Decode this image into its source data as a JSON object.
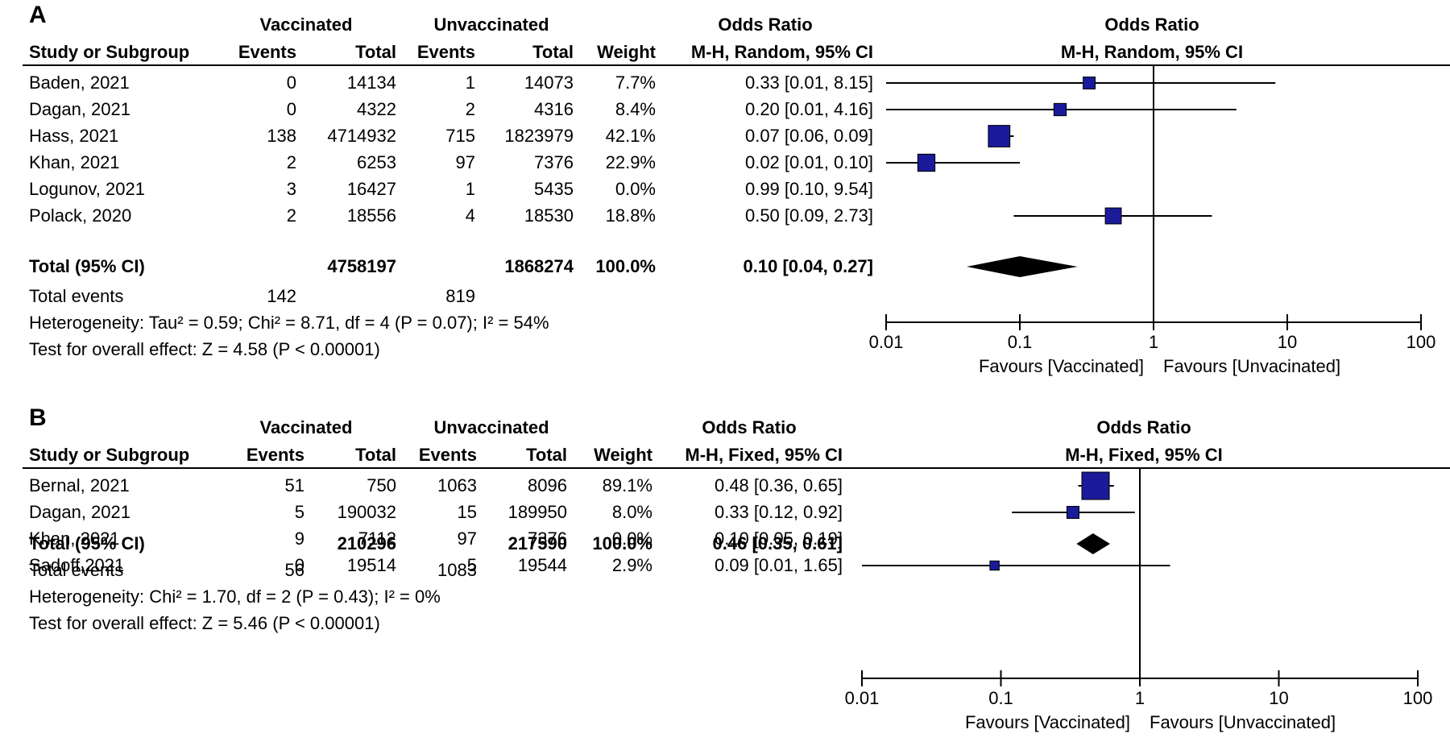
{
  "chart_data": [
    {
      "type": "forest",
      "panel_label": "A",
      "group_headers": {
        "vaccinated": "Vaccinated",
        "unvaccinated": "Unvaccinated",
        "or_table": "Odds Ratio",
        "or_plot": "Odds Ratio"
      },
      "column_headers": {
        "study": "Study or Subgroup",
        "events1": "Events",
        "total1": "Total",
        "events2": "Events",
        "total2": "Total",
        "weight": "Weight",
        "method_table": "M-H, Random, 95% CI",
        "method_plot": "M-H, Random, 95% CI"
      },
      "studies": [
        {
          "name": "Baden, 2021",
          "events1": "0",
          "total1": "14134",
          "events2": "1",
          "total2": "14073",
          "weight": "7.7%",
          "or_text": "0.33 [0.01, 8.15]",
          "or": 0.33,
          "lo": 0.01,
          "hi": 8.15,
          "w": 7.7
        },
        {
          "name": "Dagan, 2021",
          "events1": "0",
          "total1": "4322",
          "events2": "2",
          "total2": "4316",
          "weight": "8.4%",
          "or_text": "0.20 [0.01, 4.16]",
          "or": 0.2,
          "lo": 0.01,
          "hi": 4.16,
          "w": 8.4
        },
        {
          "name": "Hass, 2021",
          "events1": "138",
          "total1": "4714932",
          "events2": "715",
          "total2": "1823979",
          "weight": "42.1%",
          "or_text": "0.07 [0.06, 0.09]",
          "or": 0.07,
          "lo": 0.06,
          "hi": 0.09,
          "w": 42.1
        },
        {
          "name": "Khan, 2021",
          "events1": "2",
          "total1": "6253",
          "events2": "97",
          "total2": "7376",
          "weight": "22.9%",
          "or_text": "0.02 [0.01, 0.10]",
          "or": 0.02,
          "lo": 0.01,
          "hi": 0.1,
          "w": 22.9
        },
        {
          "name": "Logunov, 2021",
          "events1": "3",
          "total1": "16427",
          "events2": "1",
          "total2": "5435",
          "weight": "0.0%",
          "or_text": "0.99 [0.10, 9.54]",
          "or": null,
          "lo": null,
          "hi": null,
          "w": 0
        },
        {
          "name": "Polack, 2020",
          "events1": "2",
          "total1": "18556",
          "events2": "4",
          "total2": "18530",
          "weight": "18.8%",
          "or_text": "0.50 [0.09, 2.73]",
          "or": 0.5,
          "lo": 0.09,
          "hi": 2.73,
          "w": 18.8
        }
      ],
      "total": {
        "label": "Total (95% CI)",
        "total1": "4758197",
        "total2": "1868274",
        "weight": "100.0%",
        "or_text": "0.10 [0.04, 0.27]",
        "or": 0.1,
        "lo": 0.04,
        "hi": 0.27
      },
      "total_events": {
        "label": "Total events",
        "events1": "142",
        "events2": "819"
      },
      "heterogeneity": "Heterogeneity: Tau² = 0.59; Chi² = 8.71, df = 4 (P = 0.07); I² = 54%",
      "overall_effect": "Test for overall effect: Z = 4.58 (P < 0.00001)",
      "axis": {
        "scale": "log",
        "min": 0.01,
        "max": 100,
        "ticks": [
          "0.01",
          "0.1",
          "1",
          "10",
          "100"
        ]
      },
      "favours_left": "Favours [Vaccinated]",
      "favours_right": "Favours [Unvacinated]",
      "colors": {
        "square": "#1a1a9a",
        "diamond": "#000000",
        "line": "#000000"
      }
    },
    {
      "type": "forest",
      "panel_label": "B",
      "group_headers": {
        "vaccinated": "Vaccinated",
        "unvaccinated": "Unvaccinated",
        "or_table": "Odds Ratio",
        "or_plot": "Odds Ratio"
      },
      "column_headers": {
        "study": "Study or Subgroup",
        "events1": "Events",
        "total1": "Total",
        "events2": "Events",
        "total2": "Total",
        "weight": "Weight",
        "method_table": "M-H, Fixed, 95% CI",
        "method_plot": "M-H, Fixed, 95% CI"
      },
      "studies": [
        {
          "name": "Bernal, 2021",
          "events1": "51",
          "total1": "750",
          "events2": "1063",
          "total2": "8096",
          "weight": "89.1%",
          "or_text": "0.48 [0.36, 0.65]",
          "or": 0.48,
          "lo": 0.36,
          "hi": 0.65,
          "w": 89.1
        },
        {
          "name": "Dagan, 2021",
          "events1": "5",
          "total1": "190032",
          "events2": "15",
          "total2": "189950",
          "weight": "8.0%",
          "or_text": "0.33 [0.12, 0.92]",
          "or": 0.33,
          "lo": 0.12,
          "hi": 0.92,
          "w": 8.0
        },
        {
          "name": "Khan, 2021",
          "events1": "9",
          "total1": "7112",
          "events2": "97",
          "total2": "7376",
          "weight": "0.0%",
          "or_text": "0.10 [0.05, 0.19]",
          "or": null,
          "lo": null,
          "hi": null,
          "w": 0
        },
        {
          "name": "Sadoff,2021",
          "events1": "0",
          "total1": "19514",
          "events2": "5",
          "total2": "19544",
          "weight": "2.9%",
          "or_text": "0.09 [0.01, 1.65]",
          "or": 0.09,
          "lo": 0.01,
          "hi": 1.65,
          "w": 2.9
        }
      ],
      "total": {
        "label": "Total (95% CI)",
        "total1": "210296",
        "total2": "217590",
        "weight": "100.0%",
        "or_text": "0.46 [0.35, 0.61]",
        "or": 0.46,
        "lo": 0.35,
        "hi": 0.61
      },
      "total_events": {
        "label": "Total events",
        "events1": "56",
        "events2": "1083"
      },
      "heterogeneity": "Heterogeneity: Chi² = 1.70, df = 2 (P = 0.43); I² = 0%",
      "overall_effect": "Test for overall effect: Z = 5.46 (P < 0.00001)",
      "axis": {
        "scale": "log",
        "min": 0.01,
        "max": 100,
        "ticks": [
          "0.01",
          "0.1",
          "1",
          "10",
          "100"
        ]
      },
      "favours_left": "Favours [Vaccinated]",
      "favours_right": "Favours [Unvaccinated]",
      "colors": {
        "square": "#1a1a9a",
        "diamond": "#000000",
        "line": "#000000"
      }
    }
  ]
}
